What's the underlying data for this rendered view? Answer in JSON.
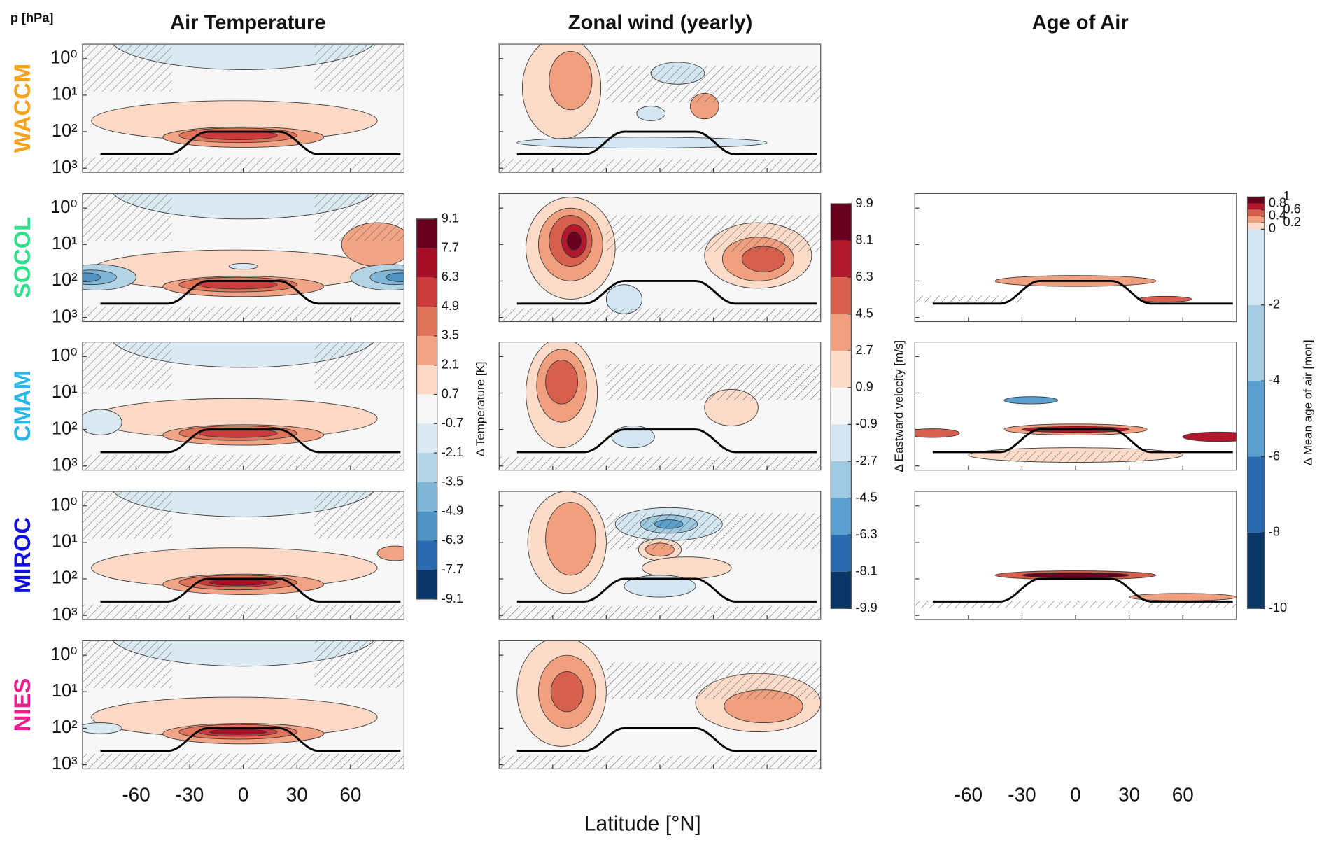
{
  "figure": {
    "y_axis_label": "p [hPa]",
    "x_axis_label": "Latitude [°N]",
    "columns": [
      {
        "title": "Air Temperature"
      },
      {
        "title": "Zonal wind (yearly)"
      },
      {
        "title": "Age of Air"
      }
    ],
    "models": [
      {
        "name": "WACCM",
        "color": "#f7a21b"
      },
      {
        "name": "SOCOL",
        "color": "#2fe08a"
      },
      {
        "name": "CMAM",
        "color": "#29b6e8"
      },
      {
        "name": "MIROC",
        "color": "#1010e0"
      },
      {
        "name": "NIES",
        "color": "#ee1e90"
      }
    ],
    "ylim": [
      1300,
      0.4
    ],
    "yscale": "log",
    "yticks": [
      {
        "value": 1,
        "label": "10⁰"
      },
      {
        "value": 10,
        "label": "10¹"
      },
      {
        "value": 100,
        "label": "10²"
      },
      {
        "value": 1000,
        "label": "10³"
      }
    ],
    "xlim": [
      -90,
      90
    ],
    "xticks": [
      -60,
      -30,
      0,
      30,
      60
    ],
    "colorbars": [
      {
        "label": "Δ  Temperature  [K]",
        "ticks": [
          9.1,
          7.7,
          6.3,
          4.9,
          3.5,
          2.1,
          0.7,
          -0.7,
          -2.1,
          -3.5,
          -4.9,
          -6.3,
          -7.7,
          -9.1
        ],
        "colors": [
          "#67001f",
          "#a50f27",
          "#cb3b3b",
          "#e0745a",
          "#f1a486",
          "#fbd9c6",
          "#f7f7f7",
          "#dbe9f2",
          "#b4d4e6",
          "#80b6d6",
          "#4f93c3",
          "#2a6aae",
          "#0b3768"
        ]
      },
      {
        "label": "Δ  Eastward  velocity  [m/s]",
        "ticks": [
          9.9,
          8.1,
          6.3,
          4.5,
          2.7,
          0.9,
          -0.9,
          -2.7,
          -4.5,
          -6.3,
          -8.1,
          -9.9
        ],
        "colors": [
          "#67001f",
          "#b2182b",
          "#d6604d",
          "#f0a07e",
          "#fcdcc8",
          "#f7f7f7",
          "#d4e6f1",
          "#9ecae1",
          "#5b9fcf",
          "#2a6aae",
          "#0b3768"
        ]
      },
      {
        "label": "Δ  Mean age of air [mon]",
        "ticks": [
          1,
          0.8,
          0.6,
          0.4,
          0.2,
          0,
          -2,
          -4,
          -6,
          -8,
          -10
        ],
        "colors": [
          "#67001f",
          "#b2182b",
          "#d6604d",
          "#f0a07e",
          "#fcdcc8",
          "#d4e6f1",
          "#a6cde3",
          "#5b9fcf",
          "#2a6aae",
          "#0b3768"
        ]
      }
    ]
  }
}
